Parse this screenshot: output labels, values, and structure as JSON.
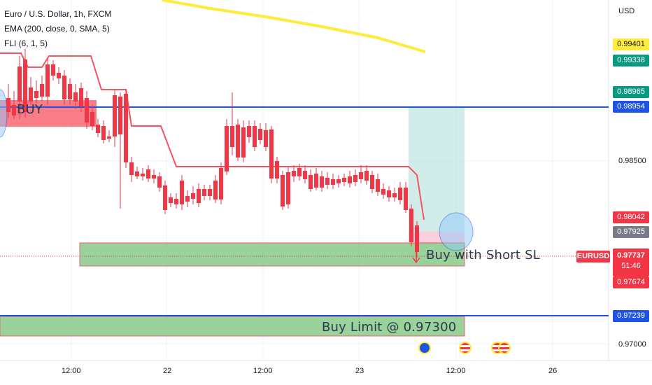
{
  "legend": {
    "symbol_title": "Euro / U.S. Dollar, 1h, FXCM",
    "indicator_ema": "EMA (200, close, 0, SMA, 5)",
    "indicator_fli": "FLI (6, 1, 5)"
  },
  "price_axis": {
    "currency": "USD",
    "levels": [
      "0.98500",
      "0.97000"
    ],
    "tags": [
      {
        "value": "0.99401",
        "bg": "#ffeb3b",
        "fg": "#131722"
      },
      {
        "value": "0.99338",
        "bg": "#089981",
        "fg": "#ffffff"
      },
      {
        "value": "0.98965",
        "bg": "#089981",
        "fg": "#ffffff"
      },
      {
        "value": "0.98954",
        "bg": "#1e53e5",
        "fg": "#ffffff"
      },
      {
        "value": "0.98042",
        "bg": "#f23645",
        "fg": "#ffffff"
      },
      {
        "value": "0.97925",
        "bg": "#787b86",
        "fg": "#ffffff"
      },
      {
        "value": "0.97674",
        "bg": "#f23645",
        "fg": "#ffffff"
      },
      {
        "value": "0.97239",
        "bg": "#1e53e5",
        "fg": "#ffffff"
      }
    ],
    "symbol_tag": "EURUSD",
    "last_price": "0.97737",
    "countdown": "51:46"
  },
  "time_axis": [
    "12:00",
    "22",
    "12:00",
    "23",
    "12:00",
    "26"
  ],
  "annotations": {
    "buy": "BUY",
    "buy_short_sl": "Buy with Short SL",
    "buy_limit": "Buy Limit @ 0.97300"
  },
  "colors": {
    "up": "#089981",
    "down": "#f23645",
    "ema": "#ffeb3b",
    "hline": "#1e53e5",
    "zone_green": "#81c784",
    "zone_red": "#f7525f"
  },
  "icons": [
    "calendar-event-icon",
    "us-flag-event-icon",
    "us-flag-event-icon"
  ]
}
